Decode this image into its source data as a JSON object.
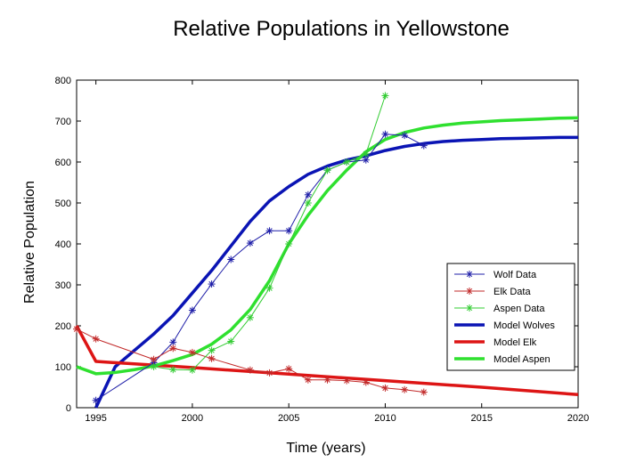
{
  "chart_data": {
    "type": "line",
    "title": "Relative Populations in Yellowstone",
    "xlabel": "Time (years)",
    "ylabel": "Relative Population",
    "xlim": [
      1994,
      2020
    ],
    "ylim": [
      0,
      800
    ],
    "xticks": [
      1995,
      2000,
      2005,
      2010,
      2015,
      2020
    ],
    "yticks": [
      0,
      100,
      200,
      300,
      400,
      500,
      600,
      700,
      800
    ],
    "grid": false,
    "legend": "right",
    "series": [
      {
        "name": "Wolf Data",
        "kind": "data",
        "color": "#1f1fa8",
        "marker": "asterisk",
        "x": [
          1995,
          1998,
          1999,
          2000,
          2001,
          2002,
          2003,
          2004,
          2005,
          2006,
          2007,
          2008,
          2009,
          2010,
          2011,
          2012
        ],
        "y": [
          18,
          110,
          160,
          238,
          302,
          362,
          402,
          432,
          432,
          520,
          580,
          600,
          605,
          668,
          665,
          640
        ]
      },
      {
        "name": "Elk Data",
        "kind": "data",
        "color": "#c22a2a",
        "marker": "asterisk",
        "x": [
          1994,
          1995,
          1998,
          1999,
          2000,
          2001,
          2003,
          2004,
          2005,
          2006,
          2007,
          2008,
          2009,
          2010,
          2011,
          2012
        ],
        "y": [
          192,
          168,
          118,
          145,
          135,
          120,
          92,
          85,
          95,
          68,
          68,
          66,
          62,
          48,
          44,
          38
        ]
      },
      {
        "name": "Aspen Data",
        "kind": "data",
        "color": "#33cc33",
        "marker": "asterisk",
        "x": [
          1998,
          1999,
          2000,
          2001,
          2002,
          2003,
          2004,
          2005,
          2006,
          2007,
          2008,
          2009,
          2010
        ],
        "y": [
          100,
          93,
          92,
          140,
          162,
          220,
          292,
          400,
          500,
          580,
          600,
          620,
          762
        ]
      },
      {
        "name": "Model Wolves",
        "kind": "model",
        "color": "#0a14b4",
        "x": [
          1995,
          1996,
          1997,
          1998,
          1999,
          2000,
          2001,
          2002,
          2003,
          2004,
          2005,
          2006,
          2007,
          2008,
          2009,
          2010,
          2011,
          2012,
          2013,
          2014,
          2015,
          2016,
          2017,
          2018,
          2019,
          2020
        ],
        "y": [
          0,
          100,
          140,
          180,
          225,
          280,
          335,
          395,
          455,
          505,
          540,
          570,
          590,
          605,
          615,
          628,
          638,
          645,
          650,
          653,
          655,
          657,
          658,
          659,
          660,
          660
        ]
      },
      {
        "name": "Model Elk",
        "kind": "model",
        "color": "#dd1515",
        "x": [
          1994,
          1995,
          2000,
          2005,
          2010,
          2015,
          2020
        ],
        "y": [
          200,
          113,
          98,
          82,
          66,
          50,
          32
        ]
      },
      {
        "name": "Model Aspen",
        "kind": "model",
        "color": "#2fe02f",
        "x": [
          1994,
          1995,
          1996,
          1997,
          1998,
          1999,
          2000,
          2001,
          2002,
          2003,
          2004,
          2005,
          2006,
          2007,
          2008,
          2009,
          2010,
          2011,
          2012,
          2013,
          2014,
          2015,
          2016,
          2017,
          2018,
          2019,
          2020
        ],
        "y": [
          100,
          83,
          86,
          93,
          102,
          115,
          130,
          155,
          190,
          240,
          310,
          400,
          470,
          530,
          580,
          625,
          655,
          672,
          683,
          690,
          695,
          698,
          701,
          703,
          705,
          707,
          708
        ]
      }
    ]
  }
}
